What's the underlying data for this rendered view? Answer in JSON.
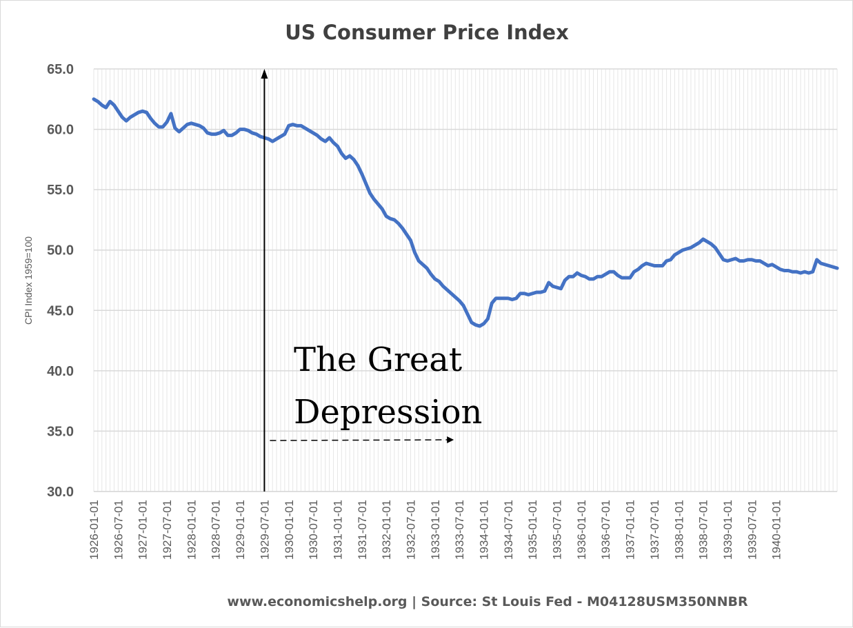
{
  "chart_data": {
    "type": "line",
    "title": "US Consumer Price Index",
    "xlabel": "",
    "ylabel": "CPI Index 1959=100",
    "source": "www.economicshelp.org | Source: St Louis Fed - M04128USM350NNBR",
    "ylim": [
      30,
      65
    ],
    "yticks": [
      "30.0",
      "35.0",
      "40.0",
      "45.0",
      "50.0",
      "55.0",
      "60.0",
      "65.0"
    ],
    "xticks": [
      "1926-01-01",
      "1926-07-01",
      "1927-01-01",
      "1927-07-01",
      "1928-01-01",
      "1928-07-01",
      "1929-01-01",
      "1929-07-01",
      "1930-01-01",
      "1930-07-01",
      "1931-01-01",
      "1931-07-01",
      "1932-01-01",
      "1932-07-01",
      "1933-01-01",
      "1933-07-01",
      "1934-01-01",
      "1934-07-01",
      "1935-01-01",
      "1935-07-01",
      "1936-01-01",
      "1936-07-01",
      "1937-01-01",
      "1937-07-01",
      "1938-01-01",
      "1938-07-01",
      "1939-01-01",
      "1939-07-01",
      "1940-01-01"
    ],
    "grid": true,
    "legend": "none",
    "series": [
      {
        "name": "CPI",
        "color": "#4472C4",
        "x_start": "1926-01-01",
        "frequency": "monthly",
        "values": [
          62.5,
          62.3,
          62.0,
          61.8,
          62.3,
          62.0,
          61.5,
          61.0,
          60.7,
          61.0,
          61.2,
          61.4,
          61.5,
          61.4,
          60.9,
          60.5,
          60.2,
          60.2,
          60.6,
          61.3,
          60.1,
          59.8,
          60.1,
          60.4,
          60.5,
          60.4,
          60.3,
          60.1,
          59.7,
          59.6,
          59.6,
          59.7,
          59.9,
          59.5,
          59.5,
          59.7,
          60.0,
          60.0,
          59.9,
          59.7,
          59.6,
          59.4,
          59.3,
          59.2,
          59.0,
          59.2,
          59.4,
          59.6,
          60.3,
          60.4,
          60.3,
          60.3,
          60.1,
          59.9,
          59.7,
          59.5,
          59.2,
          59.0,
          59.3,
          58.9,
          58.6,
          58.0,
          57.6,
          57.8,
          57.5,
          57.0,
          56.3,
          55.5,
          54.7,
          54.2,
          53.8,
          53.4,
          52.8,
          52.6,
          52.5,
          52.2,
          51.8,
          51.3,
          50.8,
          49.8,
          49.1,
          48.8,
          48.5,
          48.0,
          47.6,
          47.4,
          47.0,
          46.7,
          46.4,
          46.1,
          45.8,
          45.4,
          44.7,
          44.0,
          43.8,
          43.7,
          43.9,
          44.3,
          45.6,
          46.0,
          46.0,
          46.0,
          46.0,
          45.9,
          46.0,
          46.4,
          46.4,
          46.3,
          46.4,
          46.5,
          46.5,
          46.6,
          47.3,
          47.0,
          46.9,
          46.8,
          47.5,
          47.8,
          47.8,
          48.1,
          47.9,
          47.8,
          47.6,
          47.6,
          47.8,
          47.8,
          48.0,
          48.2,
          48.2,
          47.9,
          47.7,
          47.7,
          47.7,
          48.2,
          48.4,
          48.7,
          48.9,
          48.8,
          48.7,
          48.7,
          48.7,
          49.1,
          49.2,
          49.6,
          49.8,
          50.0,
          50.1,
          50.2,
          50.4,
          50.6,
          50.9,
          50.7,
          50.5,
          50.2,
          49.7,
          49.2,
          49.1,
          49.2,
          49.3,
          49.1,
          49.1,
          49.2,
          49.2,
          49.1,
          49.1,
          48.9,
          48.7,
          48.8,
          48.6,
          48.4,
          48.3,
          48.3,
          48.2,
          48.2,
          48.1,
          48.2,
          48.1,
          48.2,
          49.2,
          48.9,
          48.8,
          48.7,
          48.6,
          48.5
        ]
      }
    ],
    "annotations": {
      "text_line1": "The Great",
      "text_line2": "Depression",
      "vertical_arrow_at": "1929-07-01",
      "dashed_arrow_from": "1929-07-01",
      "dashed_arrow_to": "1933-07-01"
    }
  }
}
